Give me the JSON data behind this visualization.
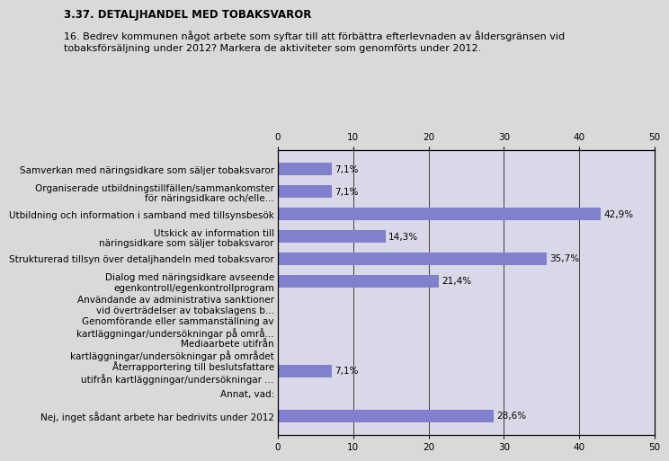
{
  "title": "3.37. DETALJHANDEL MED TOBAKSVAROR",
  "subtitle": "16. Bedrev kommunen något arbete som syftar till att förbättra efterlevnaden av åldersgränsen vid\ntobaksförsäljning under 2012? Markera de aktiviteter som genomförts under 2012.",
  "categories": [
    "Samverkan med näringsidkare som säljer tobaksvaror",
    "Organiserade utbildningstillfällen/sammankomster\nför näringsidkare och/elle...",
    "Utbildning och information i samband med tillsynsbesök",
    "Utskick av information till\nnäringsidkare som säljer tobaksvaror",
    "Strukturerad tillsyn över detaljhandeln med tobaksvaror",
    "Dialog med näringsidkare avseende\negenkontroll/egenkontrollprogram",
    "Användande av administrativa sanktioner\nvid överträdelser av tobakslagens b...",
    "Genomförande eller sammanställning av\nkartläggningar/undersökningar på områ...",
    "Mediaarbete utifrån\nkartläggningar/undersökningar på området",
    "Återrapportering till beslutsfattare\nutifrån kartläggningar/undersökningar ...",
    "Annat, vad:",
    "Nej, inget sådant arbete har bedrivits under 2012"
  ],
  "values": [
    7.1,
    7.1,
    42.9,
    14.3,
    35.7,
    21.4,
    0,
    0,
    0,
    7.1,
    0,
    28.6
  ],
  "labels": [
    "7,1%",
    "7,1%",
    "42,9%",
    "14,3%",
    "35,7%",
    "21,4%",
    "",
    "",
    "",
    "7,1%",
    "",
    "28,6%"
  ],
  "bar_color": "#8080cc",
  "background_color": "#d9d9d9",
  "plot_bg_color": "#d8d8e8",
  "xlim": [
    0,
    50
  ],
  "xticks": [
    0,
    10,
    20,
    30,
    40,
    50
  ],
  "title_fontsize": 8.5,
  "subtitle_fontsize": 8,
  "label_fontsize": 7.5,
  "tick_fontsize": 7.5
}
